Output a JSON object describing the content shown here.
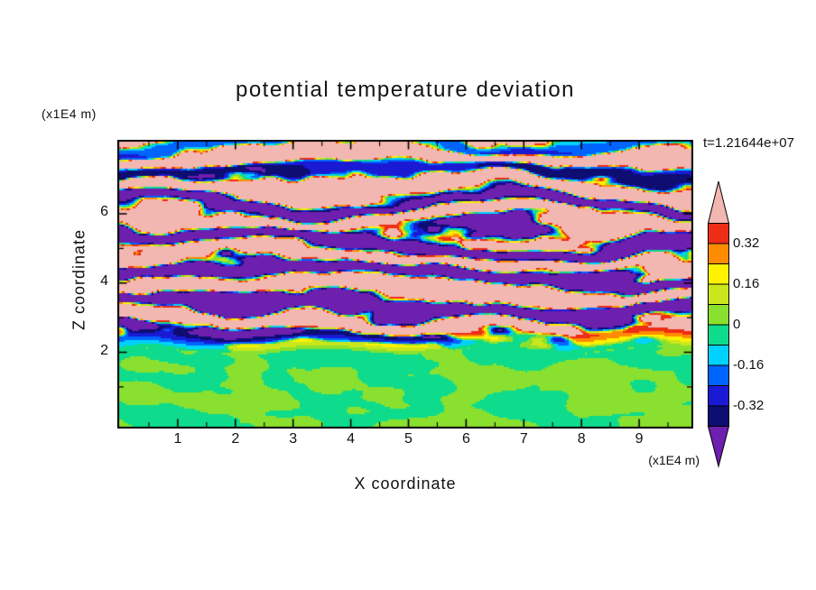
{
  "chart_data": {
    "type": "heatmap",
    "title": "potential temperature deviation",
    "time_annotation": "t=1.21644e+07",
    "x_axis": {
      "label": "X coordinate",
      "unit": "(x1E4 m)",
      "ticks": [
        "1",
        "2",
        "3",
        "4",
        "5",
        "6",
        "7",
        "8",
        "9"
      ],
      "tick_values": [
        1,
        2,
        3,
        4,
        5,
        6,
        7,
        8,
        9
      ],
      "minor_tick_values": [
        0.5,
        1.5,
        2.5,
        3.5,
        4.5,
        5.5,
        6.5,
        7.5,
        8.5,
        9.5
      ],
      "range": [
        0,
        10
      ]
    },
    "y_axis": {
      "label": "Z coordinate",
      "unit": "(x1E4 m)",
      "ticks": [
        "2",
        "4",
        "6"
      ],
      "tick_values": [
        2,
        4,
        6
      ],
      "minor_tick_values": [
        1,
        3,
        5,
        7
      ],
      "range": [
        0,
        8.3
      ]
    },
    "colorbar": {
      "tick_labels": [
        "0.32",
        "0.16",
        "0",
        "-0.16",
        "-0.32"
      ],
      "levels": [
        0.4,
        0.32,
        0.24,
        0.16,
        0.08,
        0,
        -0.08,
        -0.16,
        -0.24,
        -0.32,
        -0.4
      ],
      "band_colors": [
        "#ee2d17",
        "#ff8c00",
        "#fff200",
        "#c9e71c",
        "#8ae02e",
        "#0edc8c",
        "#00d2ff",
        "#0064ff",
        "#1a1ad4",
        "#0d0d72"
      ],
      "over_color": "#f3b7b1",
      "under_color": "#6d1fae",
      "contour_interval": 0.08
    },
    "field_regions": [
      {
        "z_range": [
          0,
          2
        ],
        "description": "near-zero deviation: interleaved convective swirls of light green (0 to 0.08) and spring green (-0.08 to 0)"
      },
      {
        "z_range": [
          2,
          6
        ],
        "description": "strongly layered wavy turbulent streaks alternating large positive (pink/red) and large negative (purple/navy) bands with thin orange/yellow/cyan fringes"
      },
      {
        "z_range": [
          6,
          8.3
        ],
        "description": "predominantly strong positive deviation (pink, > 0.4) crossed by wavy purple/navy negative streaks"
      }
    ]
  }
}
